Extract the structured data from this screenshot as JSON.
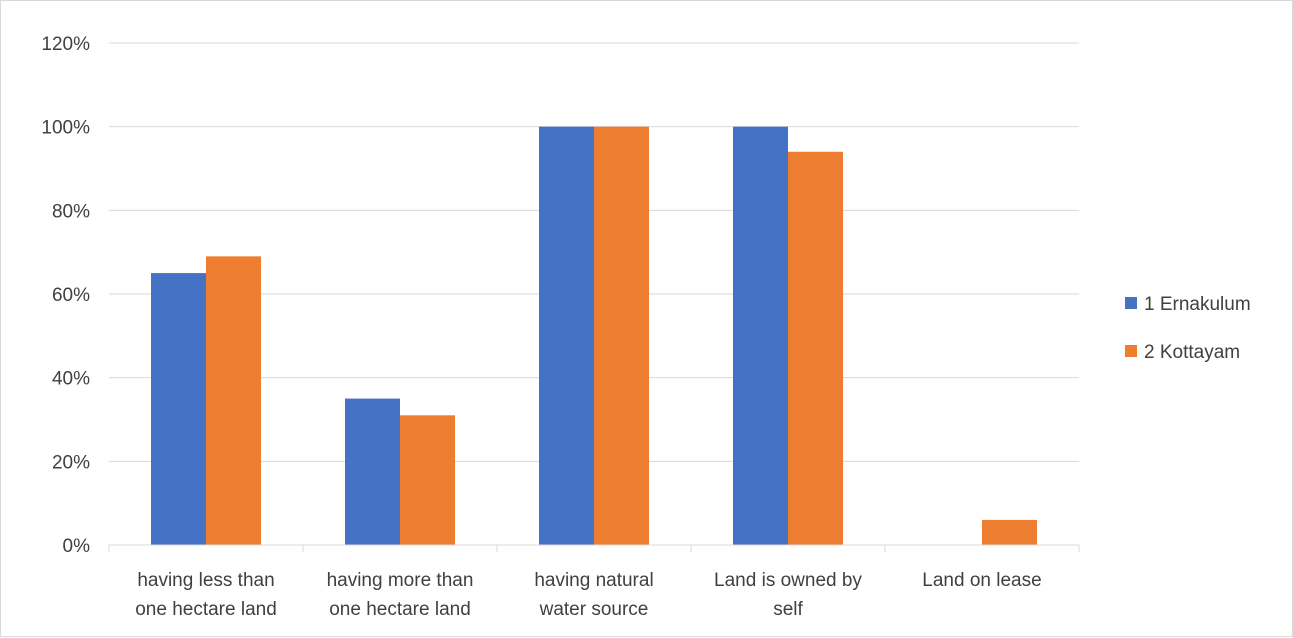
{
  "chart_data": {
    "type": "bar",
    "categories": [
      [
        "having less than",
        "one hectare land"
      ],
      [
        "having more than",
        "one hectare land"
      ],
      [
        "having natural",
        "water source"
      ],
      [
        "Land is owned by",
        "self"
      ],
      [
        "Land on lease"
      ]
    ],
    "series": [
      {
        "name": "1 Ernakulum",
        "color": "#4472C4",
        "values": [
          0.65,
          0.35,
          1.0,
          1.0,
          0
        ]
      },
      {
        "name": "2 Kottayam",
        "color": "#ED7D31",
        "values": [
          0.69,
          0.31,
          1.0,
          0.94,
          0.06
        ]
      }
    ],
    "ylim": [
      0,
      1.2
    ],
    "yticks": [
      "0%",
      "20%",
      "40%",
      "60%",
      "80%",
      "100%",
      "120%"
    ],
    "grid": true,
    "legend": "right"
  }
}
